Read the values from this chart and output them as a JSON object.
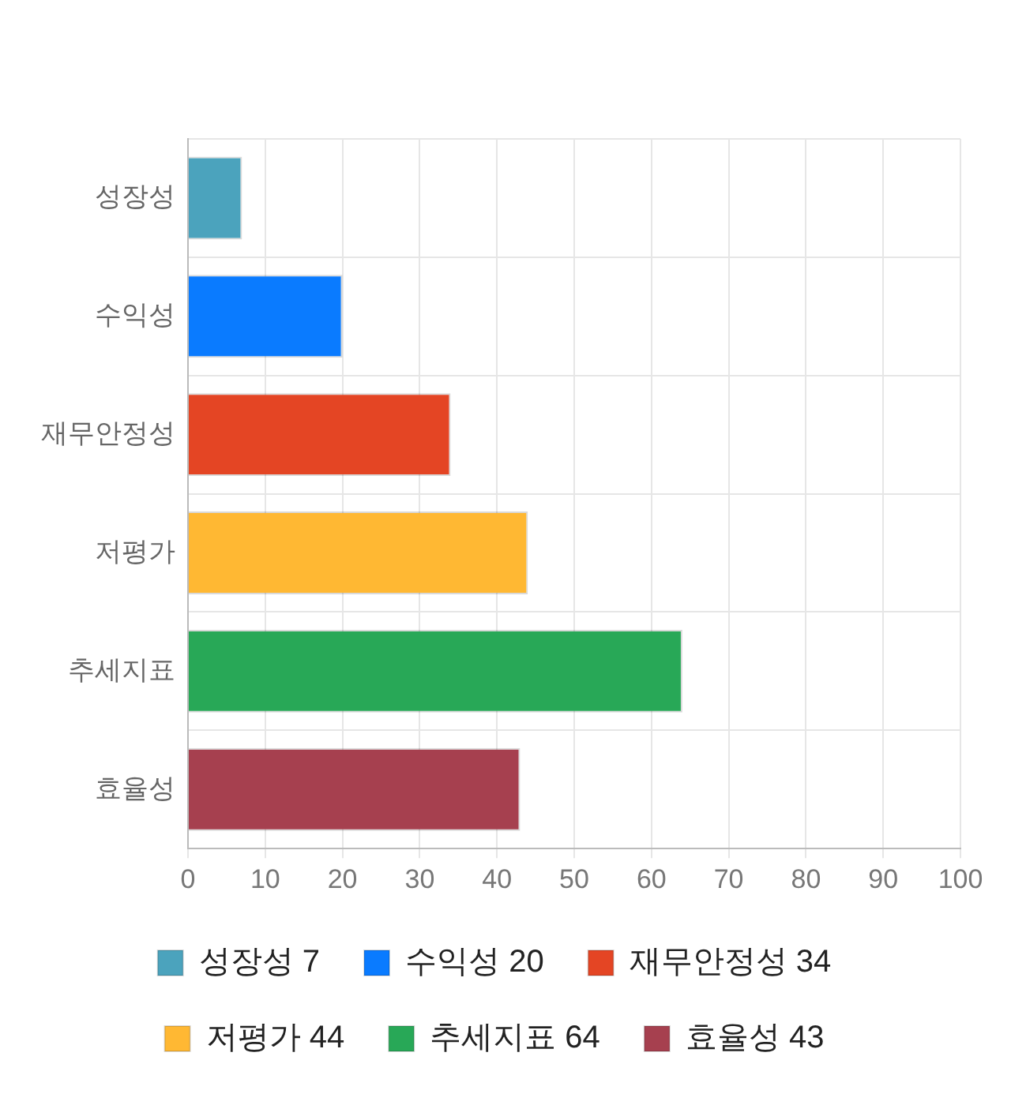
{
  "chart_data": {
    "type": "bar",
    "orientation": "horizontal",
    "stacked": true,
    "categories": [
      "성장성",
      "수익성",
      "재무안정성",
      "저평가",
      "추세지표",
      "효율성"
    ],
    "series": [
      {
        "name": "성장성 7",
        "color": "#4ba3bd",
        "values": [
          7,
          null,
          null,
          null,
          null,
          null
        ]
      },
      {
        "name": "수익성 20",
        "color": "#0a7bff",
        "values": [
          null,
          20,
          null,
          null,
          null,
          null
        ]
      },
      {
        "name": "재무안정성 34",
        "color": "#e44524",
        "values": [
          null,
          null,
          34,
          null,
          null,
          null
        ]
      },
      {
        "name": "저평가 44",
        "color": "#ffb833",
        "values": [
          null,
          null,
          null,
          44,
          null,
          null
        ]
      },
      {
        "name": "추세지표 64",
        "color": "#28a857",
        "values": [
          null,
          null,
          null,
          null,
          64,
          null
        ]
      },
      {
        "name": "효율성 43",
        "color": "#a6404f",
        "values": [
          null,
          null,
          null,
          null,
          null,
          43
        ]
      }
    ],
    "xlim": [
      0,
      100
    ],
    "xticks": [
      0,
      10,
      20,
      30,
      40,
      50,
      60,
      70,
      80,
      90,
      100
    ],
    "grid": true,
    "legend": "bottom"
  }
}
